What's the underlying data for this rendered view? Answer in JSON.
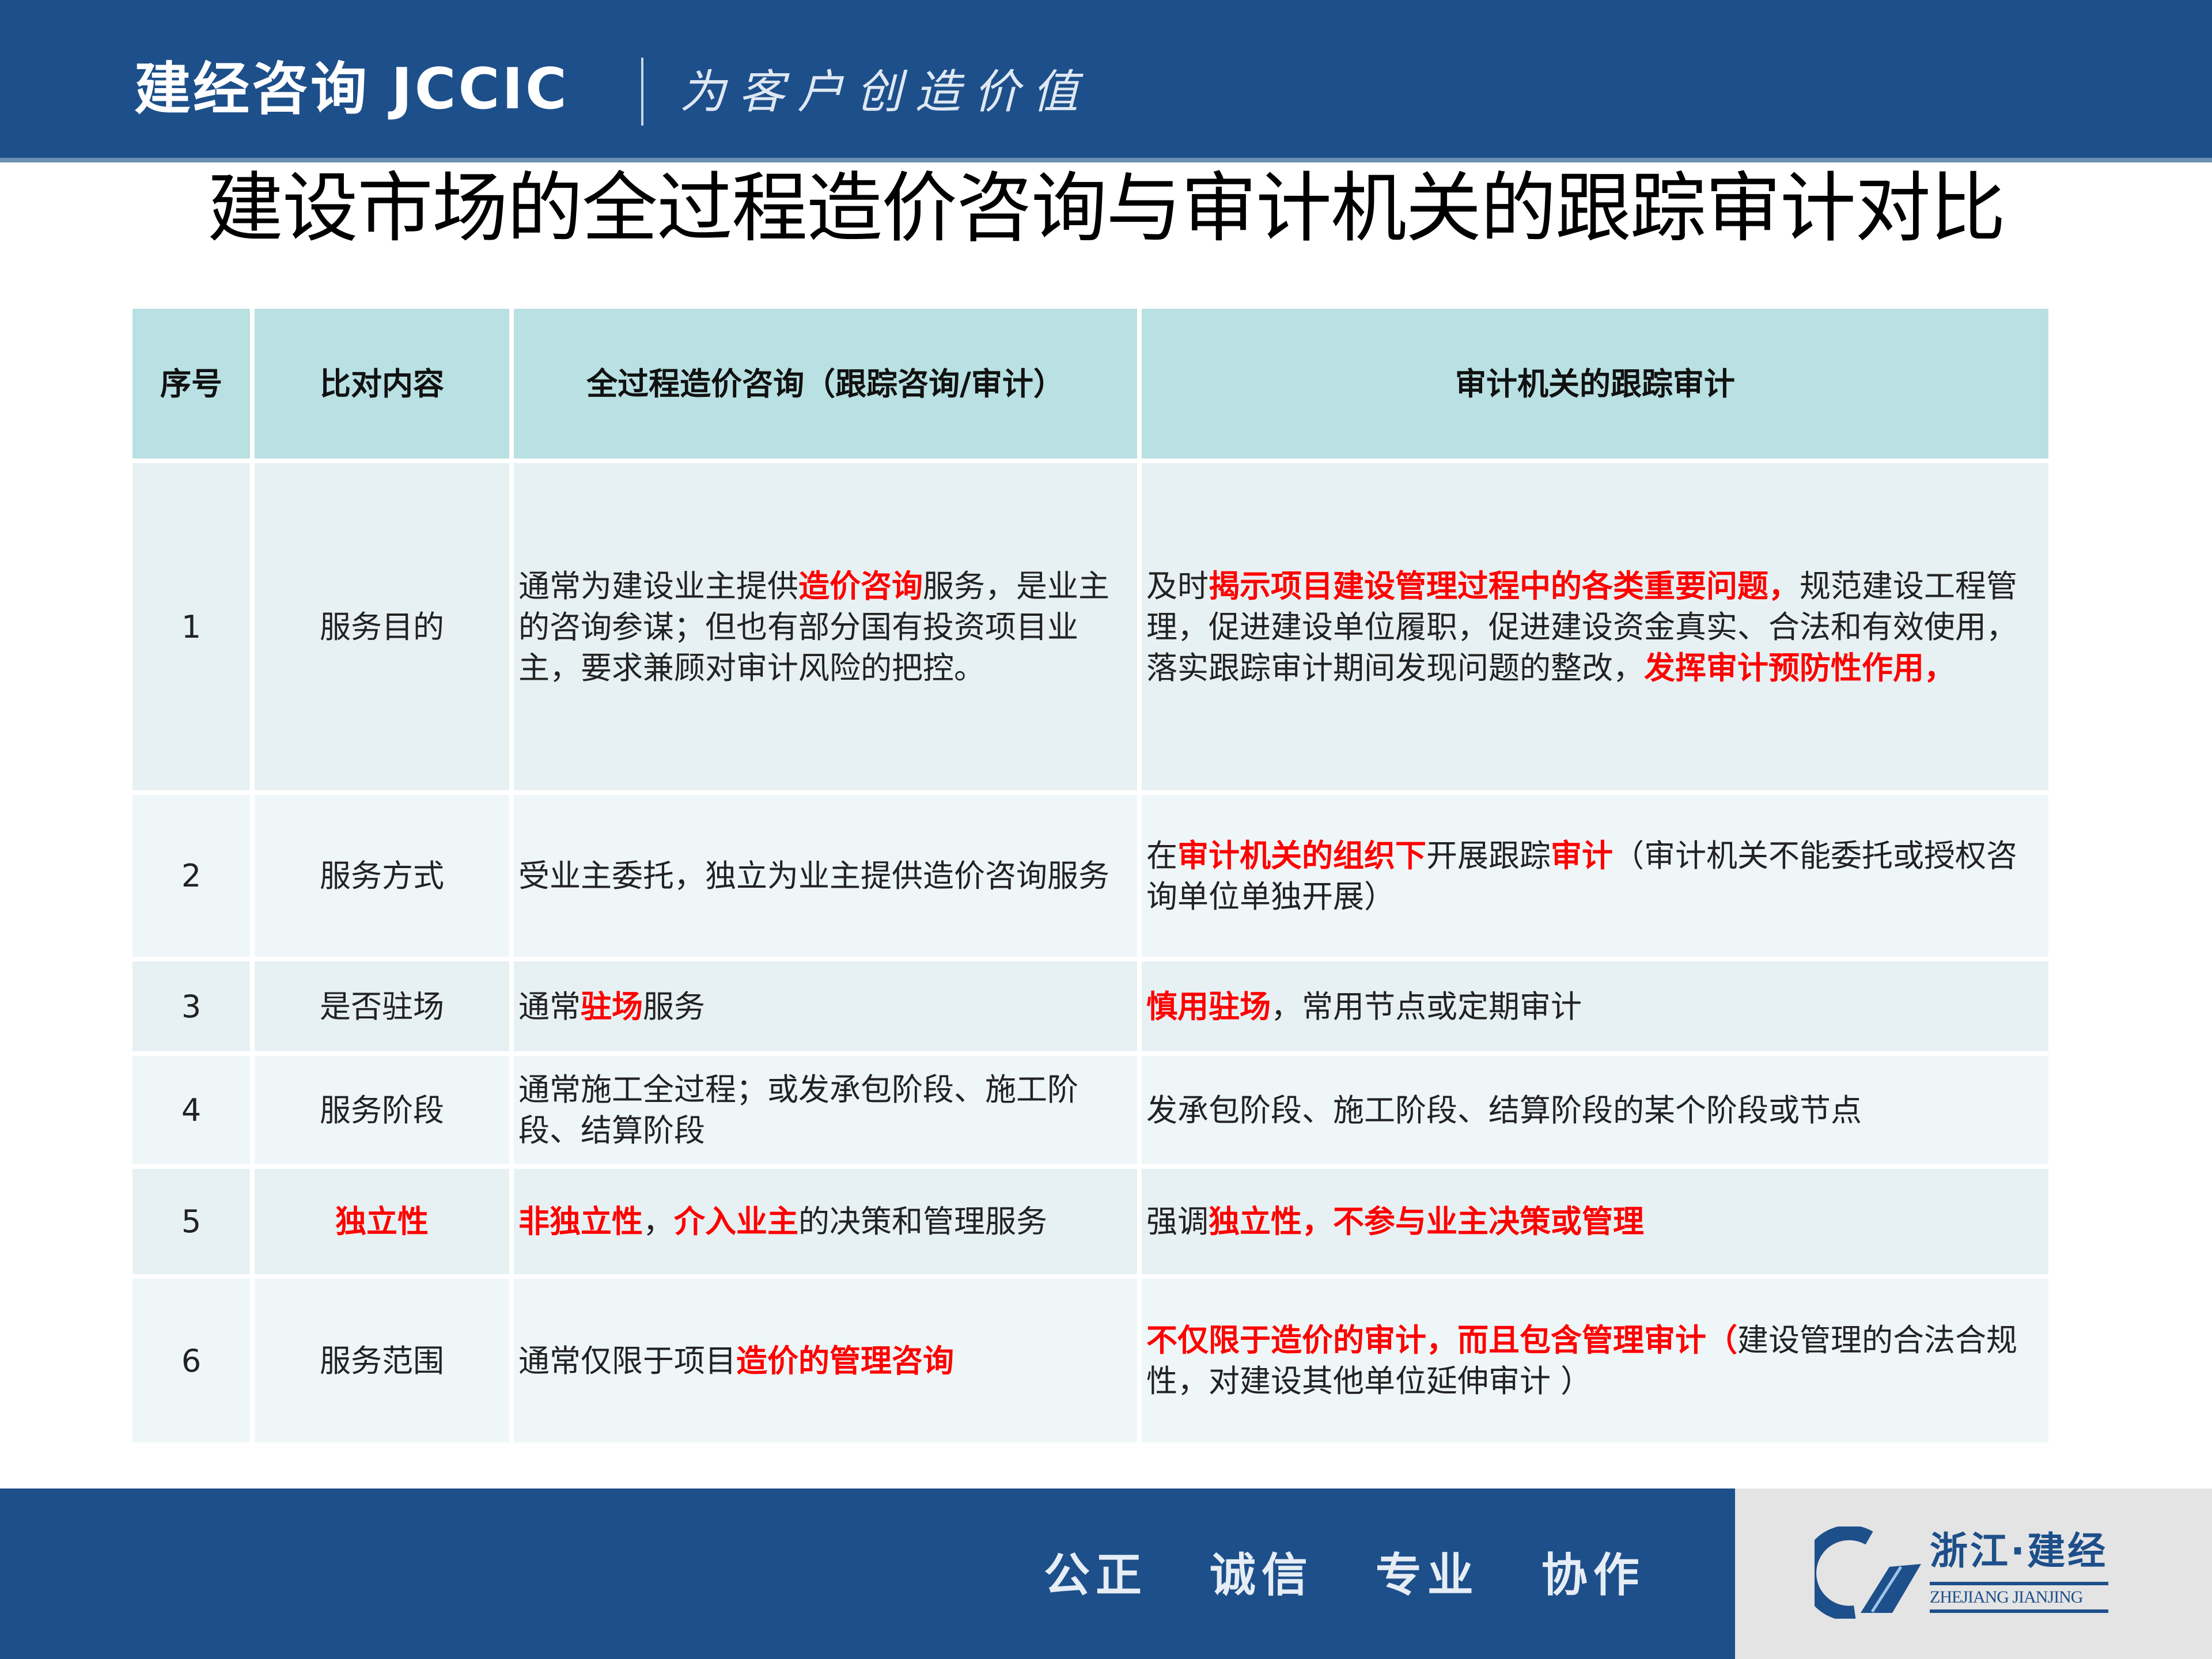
{
  "header": {
    "brand": "建经咨询 JCCIC",
    "slogan": "为客户创造价值"
  },
  "title": "建设市场的全过程造价咨询与审计机关的跟踪审计对比",
  "table": {
    "columns": [
      "序号",
      "比对内容",
      "全过程造价咨询（跟踪咨询/审计）",
      "审计机关的跟踪审计"
    ],
    "rows": [
      {
        "no": "1",
        "item": [
          {
            "text": "服务目的",
            "red": false
          }
        ],
        "consulting": [
          {
            "text": "通常为建设业主提供",
            "red": false
          },
          {
            "text": "造价咨询",
            "red": true
          },
          {
            "text": "服务，是业主的咨询参谋；但也有部分国有投资项目业主，要求兼顾对审计风险的把控。",
            "red": false
          }
        ],
        "audit": [
          {
            "text": "及时",
            "red": false
          },
          {
            "text": "揭示项目建设管理过程中的各类重要问题，",
            "red": true
          },
          {
            "text": "规范建设工程管理，促进建设单位履职，促进建设资金真实、合法和有效使用，落实跟踪审计期间发现问题的整改，",
            "red": false
          },
          {
            "text": "发挥审计预防性作用，",
            "red": true
          }
        ]
      },
      {
        "no": "2",
        "item": [
          {
            "text": "服务方式",
            "red": false
          }
        ],
        "consulting": [
          {
            "text": "受业主委托，独立为业主提供造价咨询服务",
            "red": false
          }
        ],
        "audit": [
          {
            "text": "在",
            "red": false
          },
          {
            "text": "审计机关的组织下",
            "red": true
          },
          {
            "text": "开展跟踪",
            "red": false
          },
          {
            "text": "审计",
            "red": true
          },
          {
            "text": "（审计机关不能委托或授权咨询单位单独开展）",
            "red": false
          }
        ]
      },
      {
        "no": "3",
        "item": [
          {
            "text": "是否驻场",
            "red": false
          }
        ],
        "consulting": [
          {
            "text": "通常",
            "red": false
          },
          {
            "text": "驻场",
            "red": true
          },
          {
            "text": "服务",
            "red": false
          }
        ],
        "audit": [
          {
            "text": "慎用驻场",
            "red": true
          },
          {
            "text": "，常用节点或定期审计",
            "red": false
          }
        ]
      },
      {
        "no": "4",
        "item": [
          {
            "text": "服务阶段",
            "red": false
          }
        ],
        "consulting": [
          {
            "text": "通常施工全过程；或发承包阶段、施工阶段、结算阶段",
            "red": false
          }
        ],
        "audit": [
          {
            "text": "发承包阶段、施工阶段、结算阶段的某个阶段或节点",
            "red": false
          }
        ]
      },
      {
        "no": "5",
        "item": [
          {
            "text": "独立性",
            "red": true
          }
        ],
        "consulting": [
          {
            "text": "非独立性",
            "red": true
          },
          {
            "text": "，",
            "red": false
          },
          {
            "text": "介入业主",
            "red": true
          },
          {
            "text": "的决策和管理服务",
            "red": false
          }
        ],
        "audit": [
          {
            "text": "强调",
            "red": false
          },
          {
            "text": "独立性，不参与业主决策或管理",
            "red": true
          }
        ]
      },
      {
        "no": "6",
        "item": [
          {
            "text": "服务范围",
            "red": false
          }
        ],
        "consulting": [
          {
            "text": "通常仅限于项目",
            "red": false
          },
          {
            "text": "造价的管理咨询",
            "red": true
          }
        ],
        "audit": [
          {
            "text": "不仅限于造价的审计，而且包含管理审计（",
            "red": true
          },
          {
            "text": "建设管理的合法合规性，对建设其他单位延伸审计 ）",
            "red": false
          }
        ]
      }
    ]
  },
  "footer": {
    "slogans": [
      "公正",
      "诚信",
      "专业",
      "协作"
    ],
    "logo_cn": "浙江·建经",
    "logo_en": "ZHEJIANG JIANJING"
  },
  "colors": {
    "brand_blue": "#1d4f8a",
    "header_row": "#b9e0e2",
    "highlight_red": "#ff0000"
  }
}
